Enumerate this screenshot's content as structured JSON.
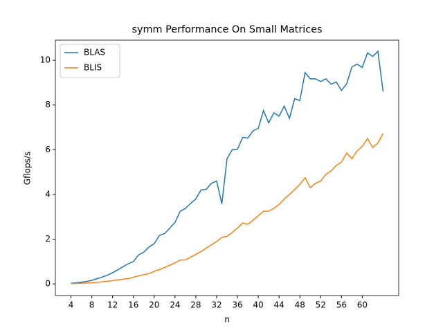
{
  "chart_data": {
    "type": "line",
    "title": "symm Performance On Small Matrices",
    "x_label": "n",
    "y_label": "Gflops/s",
    "x": [
      4,
      5,
      6,
      7,
      8,
      9,
      10,
      11,
      12,
      13,
      14,
      15,
      16,
      17,
      18,
      19,
      20,
      21,
      22,
      23,
      24,
      25,
      26,
      27,
      28,
      29,
      30,
      31,
      32,
      33,
      34,
      35,
      36,
      37,
      38,
      39,
      40,
      41,
      42,
      43,
      44,
      45,
      46,
      47,
      48,
      49,
      50,
      51,
      52,
      53,
      54,
      55,
      56,
      57,
      58,
      59,
      60,
      61,
      62,
      63,
      64
    ],
    "series": [
      {
        "name": "BLAS",
        "color": "#1f77b4",
        "values": [
          0.03,
          0.05,
          0.08,
          0.11,
          0.16,
          0.23,
          0.31,
          0.39,
          0.5,
          0.63,
          0.77,
          0.9,
          1.0,
          1.3,
          1.42,
          1.65,
          1.8,
          2.17,
          2.25,
          2.5,
          2.75,
          3.25,
          3.38,
          3.6,
          3.8,
          4.2,
          4.23,
          4.5,
          4.6,
          3.58,
          5.6,
          6.0,
          6.02,
          6.55,
          6.52,
          6.85,
          6.95,
          7.75,
          7.2,
          7.65,
          7.5,
          7.95,
          7.4,
          8.28,
          8.2,
          9.45,
          9.17,
          9.17,
          9.05,
          9.17,
          8.93,
          9.03,
          8.65,
          8.95,
          9.7,
          9.83,
          9.68,
          10.33,
          10.17,
          10.4,
          8.6
        ]
      },
      {
        "name": "BLIS",
        "color": "#ff7f0e",
        "values": [
          0.01,
          0.02,
          0.03,
          0.04,
          0.05,
          0.07,
          0.09,
          0.12,
          0.15,
          0.18,
          0.21,
          0.24,
          0.3,
          0.36,
          0.41,
          0.46,
          0.56,
          0.64,
          0.74,
          0.84,
          0.94,
          1.07,
          1.07,
          1.2,
          1.32,
          1.45,
          1.6,
          1.75,
          1.9,
          2.08,
          2.13,
          2.3,
          2.5,
          2.72,
          2.67,
          2.85,
          3.05,
          3.25,
          3.25,
          3.38,
          3.55,
          3.8,
          4.0,
          4.22,
          4.45,
          4.75,
          4.3,
          4.5,
          4.6,
          4.9,
          5.05,
          5.3,
          5.45,
          5.85,
          5.6,
          5.95,
          6.15,
          6.5,
          6.1,
          6.3,
          6.73
        ]
      }
    ],
    "xlim": [
      1,
      67
    ],
    "ylim": [
      -0.52,
      10.9
    ],
    "xticks": [
      4,
      8,
      12,
      16,
      20,
      24,
      28,
      32,
      36,
      40,
      44,
      48,
      52,
      56,
      60
    ],
    "yticks": [
      0,
      2,
      4,
      6,
      8,
      10
    ],
    "legend": "upper left"
  }
}
